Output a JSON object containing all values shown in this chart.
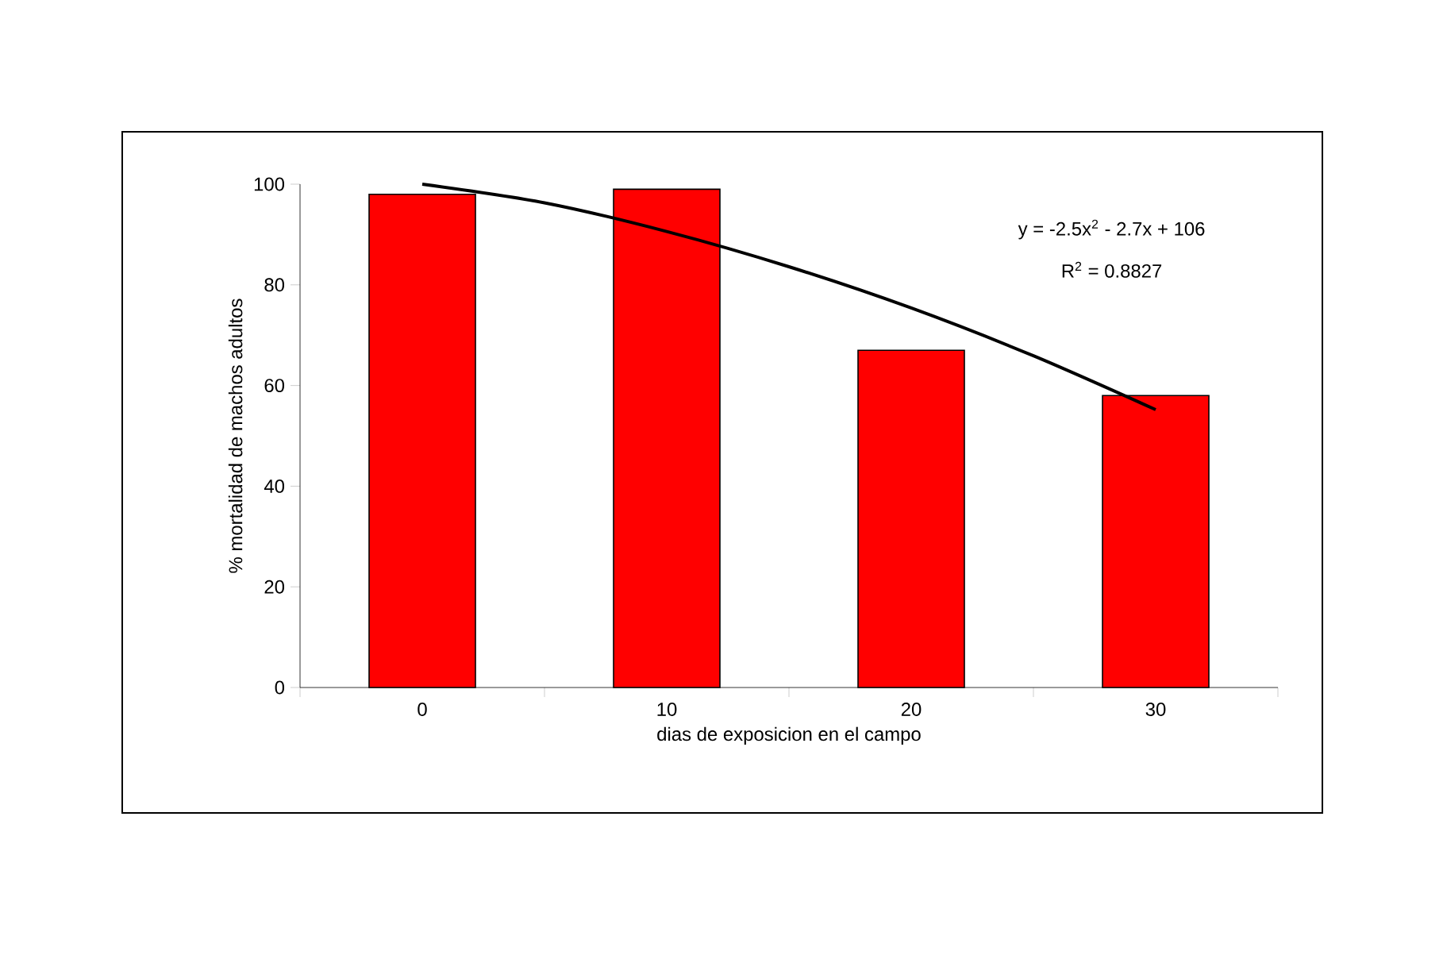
{
  "chart_data": {
    "type": "bar",
    "xlabel": "dias de exposicion en el campo",
    "ylabel": "% mortalidad de machos adultos",
    "x": [
      0,
      10,
      20,
      30
    ],
    "xlim": [
      -5,
      35
    ],
    "xticks": [
      0,
      10,
      20,
      30
    ],
    "ylim": [
      0,
      100
    ],
    "yticks": [
      0,
      20,
      40,
      60,
      80,
      100
    ],
    "grid": false,
    "series": [
      {
        "color": "#ff0000",
        "values": [
          98,
          99,
          67,
          58
        ]
      },
      {
        "type": "line",
        "color": "#000000",
        "x": [
          0,
          5,
          10,
          15,
          20,
          25,
          30
        ],
        "values": [
          100,
          96.3,
          90.6,
          83.6,
          75.4,
          65.9,
          55.2
        ]
      }
    ],
    "annotations": [
      "y = -2.5x$^{2}$ - 2.7x + 106",
      "R$^{2}$ = 0.8827"
    ]
  }
}
